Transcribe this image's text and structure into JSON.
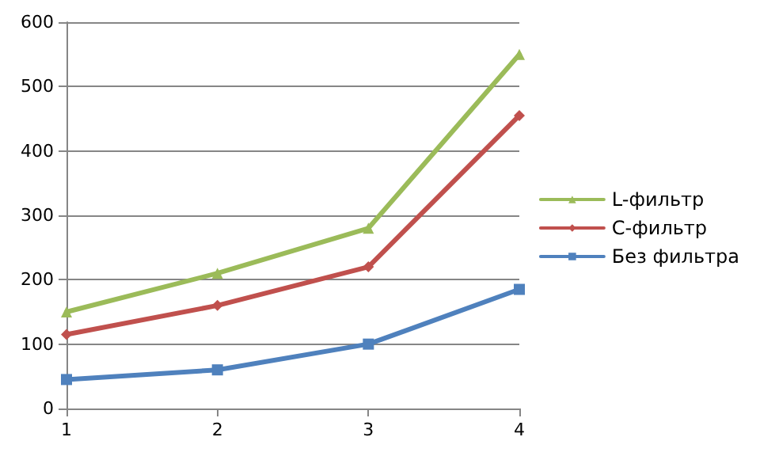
{
  "chart_data": {
    "type": "line",
    "x": [
      1,
      2,
      3,
      4
    ],
    "xlim": [
      1,
      4
    ],
    "xticks": [
      1,
      2,
      3,
      4
    ],
    "ylim": [
      0,
      600
    ],
    "yticks": [
      0,
      100,
      200,
      300,
      400,
      500,
      600
    ],
    "grid": "y",
    "legend": "right",
    "series": [
      {
        "name": "L-фильтр",
        "color": "#9bbb59",
        "marker": "triangle",
        "values": [
          150,
          210,
          280,
          550
        ]
      },
      {
        "name": "C-фильтр",
        "color": "#c0504d",
        "marker": "diamond",
        "values": [
          115,
          160,
          220,
          455
        ]
      },
      {
        "name": "Без фильтра",
        "color": "#4f81bd",
        "marker": "square",
        "values": [
          45,
          60,
          100,
          185
        ]
      }
    ]
  }
}
